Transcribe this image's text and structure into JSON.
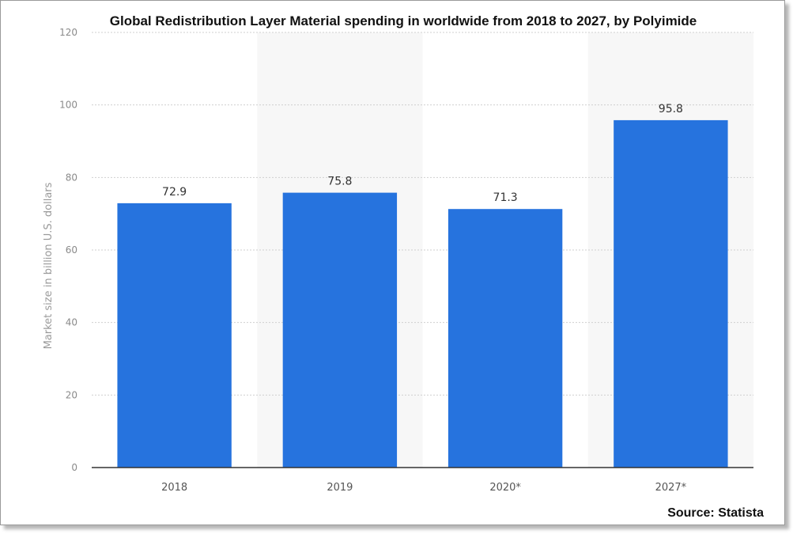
{
  "chart_data": {
    "type": "bar",
    "title": "Global Redistribution Layer Material spending in worldwide from 2018 to 2027, by Polyimide",
    "xlabel": "",
    "ylabel": "Market size in billion U.S. dollars",
    "categories": [
      "2018",
      "2019",
      "2020*",
      "2027*"
    ],
    "values": [
      72.9,
      75.8,
      71.3,
      95.8
    ],
    "value_labels": [
      "72.9",
      "75.8",
      "71.3",
      "95.8"
    ],
    "ylim": [
      0,
      120
    ],
    "yticks": [
      0,
      20,
      40,
      60,
      80,
      100,
      120
    ],
    "grid": true,
    "bar_color": "#2673de",
    "source": "Source: Statista"
  }
}
